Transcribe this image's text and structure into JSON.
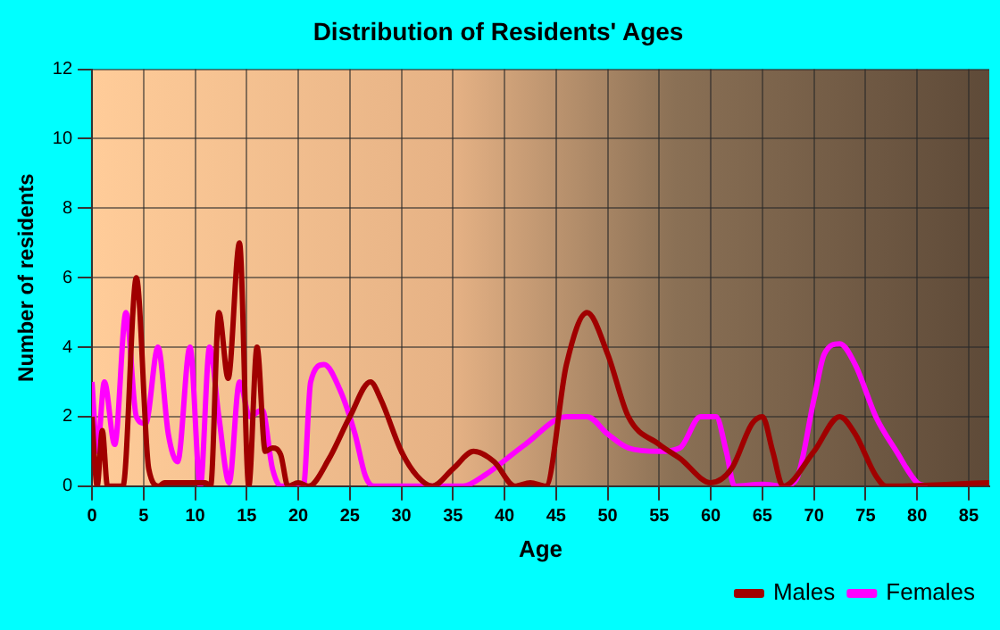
{
  "chart_data": {
    "type": "line",
    "title": "Distribution of Residents' Ages",
    "xlabel": "Age",
    "ylabel": "Number of residents",
    "xlim": [
      0,
      87
    ],
    "xticks": [
      0,
      5,
      10,
      15,
      20,
      25,
      30,
      35,
      40,
      45,
      50,
      55,
      60,
      65,
      70,
      75,
      80,
      85
    ],
    "ylim": [
      0,
      12
    ],
    "yticks": [
      0,
      2,
      4,
      6,
      8,
      10,
      12
    ],
    "grid": true,
    "legend": "bottom right",
    "marker": "none",
    "line_style": "solid",
    "series": [
      {
        "name": "Males",
        "color": "#a00000",
        "x": [
          0,
          0.5,
          1,
          1.5,
          3,
          4.3,
          5.5,
          6.5,
          7,
          11,
          11.5,
          12.3,
          13.2,
          14.3,
          15.2,
          16,
          16.8,
          17.5,
          18.3,
          19,
          20,
          21,
          23,
          25,
          27,
          28,
          30,
          31.5,
          33,
          35,
          37,
          39,
          41,
          42.5,
          44,
          46,
          48,
          50,
          52,
          55,
          57,
          60,
          62,
          64,
          65,
          66,
          67,
          70,
          72.5,
          74,
          76,
          77,
          87
        ],
        "values": [
          2,
          0,
          1.6,
          0,
          0,
          6,
          0.5,
          0,
          0.1,
          0.1,
          0,
          5,
          3.1,
          7,
          0,
          4,
          1,
          1.1,
          0.9,
          0,
          0.1,
          0,
          0.8,
          2,
          3,
          2.5,
          1,
          0.3,
          0,
          0.5,
          1,
          0.7,
          0,
          0.1,
          0,
          3.5,
          5,
          3.8,
          2,
          1.2,
          0.8,
          0.1,
          0.5,
          1.8,
          2,
          1,
          0,
          1,
          2,
          1.5,
          0.3,
          0,
          0.1
        ]
      },
      {
        "name": "Females",
        "color": "#ff00ff",
        "x": [
          0,
          0.5,
          1.2,
          2.2,
          3.3,
          4.3,
          5.2,
          6.4,
          7.4,
          8.3,
          9.5,
          10.5,
          11.4,
          12.3,
          13.3,
          14.3,
          15.3,
          16.5,
          17.5,
          18.3,
          20.5,
          21.2,
          22.5,
          24,
          25.5,
          26.5,
          27.3,
          36,
          38,
          42,
          46,
          48,
          50,
          52,
          55,
          57,
          59,
          60.5,
          61.5,
          62.3,
          65,
          67,
          68.3,
          70,
          71,
          72.5,
          74,
          76,
          78,
          80,
          81
        ],
        "values": [
          3,
          1,
          3,
          1.2,
          5,
          2,
          1.8,
          4,
          1.5,
          0.7,
          4,
          0,
          4,
          2,
          0.1,
          3,
          2,
          2.2,
          0.5,
          0,
          0,
          3,
          3.5,
          2.8,
          1.5,
          0.3,
          0,
          0,
          0.3,
          1.2,
          2,
          2,
          1.5,
          1.1,
          1,
          1.1,
          2,
          2,
          1,
          0,
          0.05,
          0,
          0.2,
          2.5,
          3.8,
          4.1,
          3.5,
          2,
          1,
          0.1,
          0
        ]
      }
    ]
  }
}
